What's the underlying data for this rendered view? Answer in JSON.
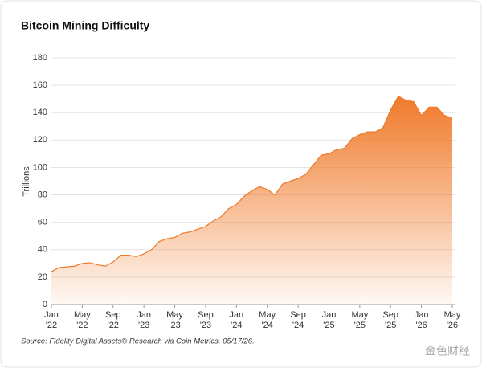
{
  "chart_data": {
    "type": "area",
    "title": "Bitcoin Mining Difficulty",
    "y_label": "Trillions",
    "source": "Source: Fidelity Digital Assets® Research via Coin Metrics, 05/17/26.",
    "watermark": "金色财经",
    "color": "#ee7a2c",
    "x": [
      "2022-01",
      "2022-02",
      "2022-03",
      "2022-04",
      "2022-05",
      "2022-06",
      "2022-07",
      "2022-08",
      "2022-09",
      "2022-10",
      "2022-11",
      "2022-12",
      "2023-01",
      "2023-02",
      "2023-03",
      "2023-04",
      "2023-05",
      "2023-06",
      "2023-07",
      "2023-08",
      "2023-09",
      "2023-10",
      "2023-11",
      "2023-12",
      "2024-01",
      "2024-02",
      "2024-03",
      "2024-04",
      "2024-05",
      "2024-06",
      "2024-07",
      "2024-08",
      "2024-09",
      "2024-10",
      "2024-11",
      "2024-12",
      "2025-01",
      "2025-02",
      "2025-03",
      "2025-04",
      "2025-05",
      "2025-06",
      "2025-07",
      "2025-08",
      "2025-09",
      "2025-10",
      "2025-11",
      "2025-12",
      "2026-01",
      "2026-02",
      "2026-03",
      "2026-04",
      "2026-05"
    ],
    "values": [
      24,
      27,
      27.5,
      28,
      30,
      30.5,
      29,
      28,
      31,
      36,
      36,
      35,
      37,
      40,
      46,
      48,
      49,
      52,
      53,
      55,
      57,
      61,
      64,
      70,
      73,
      79,
      83,
      86,
      84,
      80,
      88,
      90,
      92,
      95,
      102,
      109,
      110,
      113,
      114,
      121,
      124,
      126,
      126,
      129,
      142,
      152,
      149,
      148,
      138,
      144,
      144,
      138,
      136
    ],
    "xlim": [
      "2022-01",
      "2026-05"
    ],
    "xticks": [
      {
        "value": "2022-01",
        "label": "Jan '22"
      },
      {
        "value": "2022-05",
        "label": "May '22"
      },
      {
        "value": "2022-09",
        "label": "Sep '22"
      },
      {
        "value": "2023-01",
        "label": "Jan '23"
      },
      {
        "value": "2023-05",
        "label": "May '23"
      },
      {
        "value": "2023-09",
        "label": "Sep '23"
      },
      {
        "value": "2024-01",
        "label": "Jan '24"
      },
      {
        "value": "2024-05",
        "label": "May '24"
      },
      {
        "value": "2024-09",
        "label": "Sep '24"
      },
      {
        "value": "2025-01",
        "label": "Jan '25"
      },
      {
        "value": "2025-05",
        "label": "May '25"
      },
      {
        "value": "2025-09",
        "label": "Sep '25"
      },
      {
        "value": "2026-01",
        "label": "Jan '26"
      },
      {
        "value": "2026-05",
        "label": "May '26"
      }
    ],
    "ylim": [
      0,
      180
    ],
    "yticks": [
      0,
      20,
      40,
      60,
      80,
      100,
      120,
      140,
      160,
      180
    ],
    "grid": true
  }
}
